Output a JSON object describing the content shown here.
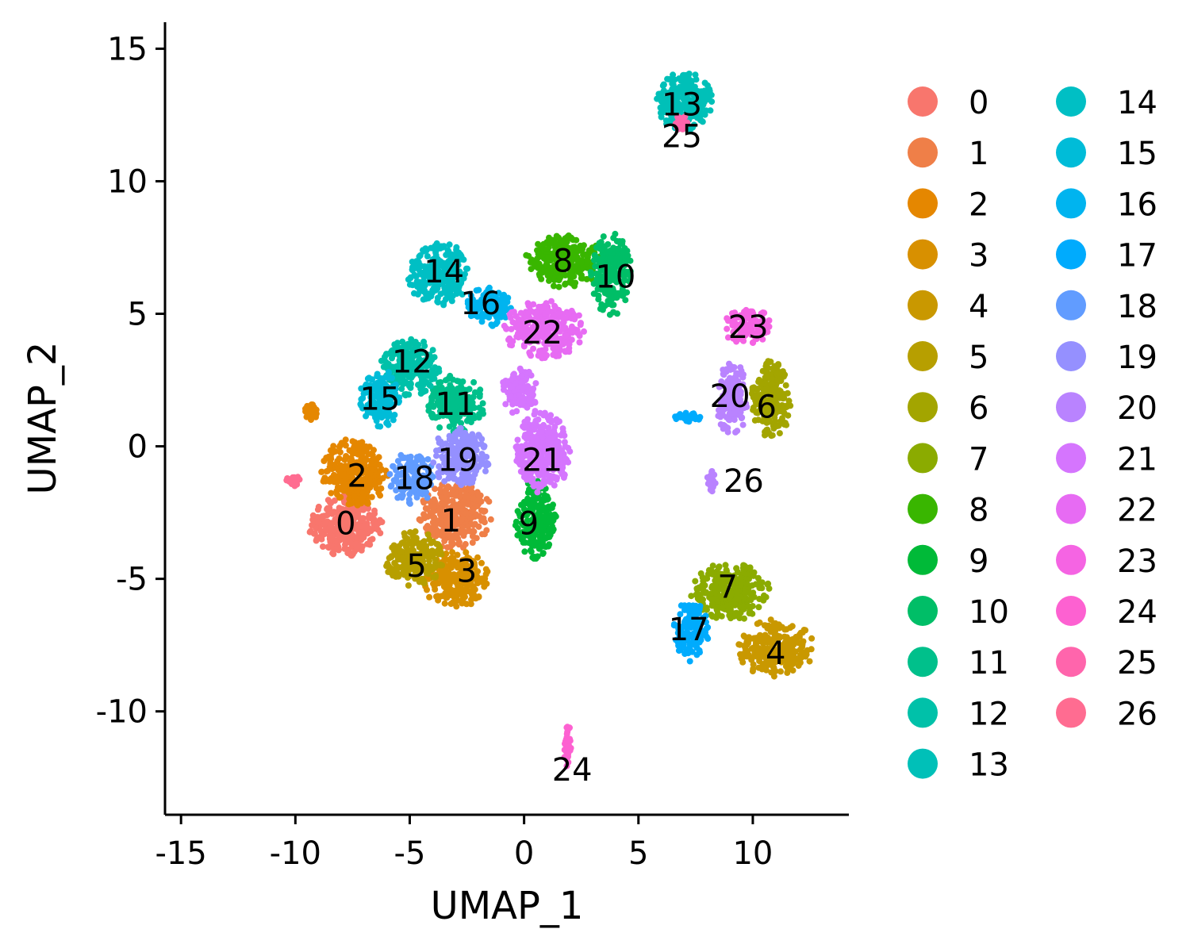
{
  "chart_data": {
    "type": "scatter",
    "xlabel": "UMAP_1",
    "ylabel": "UMAP_2",
    "xlim": [
      -15.7,
      14.2
    ],
    "ylim": [
      -13.9,
      16.0
    ],
    "xticks": [
      -15,
      -10,
      -5,
      0,
      5,
      10
    ],
    "xtick_labels": [
      "-15",
      "-10",
      "-5",
      "0",
      "5",
      "10"
    ],
    "yticks": [
      -10,
      -5,
      0,
      5,
      10,
      15
    ],
    "ytick_labels": [
      "-10",
      "-5",
      "0",
      "5",
      "10",
      "15"
    ],
    "grid": false,
    "legend_position": "right",
    "legend_columns": 2,
    "clusters": [
      {
        "name": "0",
        "color": "#F8766D",
        "label_pos": [
          -7.8,
          -2.9
        ],
        "regions": [
          [
            -7.8,
            -3.0,
            1.6,
            1.2
          ]
        ]
      },
      {
        "name": "1",
        "color": "#EF7F48",
        "label_pos": [
          -3.2,
          -2.8
        ],
        "regions": [
          [
            -3.0,
            -2.6,
            1.6,
            1.3
          ]
        ]
      },
      {
        "name": "2",
        "color": "#E58700",
        "label_pos": [
          -7.3,
          -1.1
        ],
        "regions": [
          [
            -7.4,
            -1.0,
            1.5,
            1.3
          ],
          [
            -9.3,
            1.3,
            0.3,
            0.3
          ]
        ]
      },
      {
        "name": "3",
        "color": "#D89000",
        "label_pos": [
          -2.5,
          -4.7
        ],
        "regions": [
          [
            -3.0,
            -5.0,
            1.5,
            1.1
          ]
        ]
      },
      {
        "name": "4",
        "color": "#C99800",
        "label_pos": [
          11.0,
          -7.8
        ],
        "regions": [
          [
            11.0,
            -7.6,
            1.7,
            1.1
          ]
        ]
      },
      {
        "name": "5",
        "color": "#B79F00",
        "label_pos": [
          -4.7,
          -4.5
        ],
        "regions": [
          [
            -4.8,
            -4.3,
            1.3,
            1.1
          ]
        ]
      },
      {
        "name": "6",
        "color": "#A3A500",
        "label_pos": [
          10.6,
          1.5
        ],
        "regions": [
          [
            10.8,
            1.8,
            0.9,
            1.5
          ]
        ]
      },
      {
        "name": "7",
        "color": "#8BAB00",
        "label_pos": [
          8.9,
          -5.3
        ],
        "regions": [
          [
            9.0,
            -5.5,
            1.8,
            1.1
          ]
        ]
      },
      {
        "name": "8",
        "color": "#39B600",
        "label_pos": [
          1.7,
          7.0
        ],
        "regions": [
          [
            1.8,
            7.0,
            1.8,
            1.0
          ]
        ]
      },
      {
        "name": "9",
        "color": "#00BA38",
        "label_pos": [
          0.2,
          -2.9
        ],
        "regions": [
          [
            0.5,
            -2.8,
            0.9,
            1.5
          ]
        ]
      },
      {
        "name": "10",
        "color": "#00BE67",
        "label_pos": [
          4.0,
          6.4
        ],
        "regions": [
          [
            3.8,
            6.5,
            0.9,
            1.6
          ]
        ]
      },
      {
        "name": "11",
        "color": "#00C08B",
        "label_pos": [
          -3.0,
          1.6
        ],
        "regions": [
          [
            -3.0,
            1.6,
            1.3,
            1.1
          ]
        ]
      },
      {
        "name": "12",
        "color": "#00C1A9",
        "label_pos": [
          -4.9,
          3.2
        ],
        "regions": [
          [
            -5.0,
            3.0,
            1.3,
            1.1
          ]
        ]
      },
      {
        "name": "13",
        "color": "#00C0B8",
        "label_pos": [
          6.9,
          12.9
        ],
        "regions": [
          [
            7.0,
            13.0,
            1.3,
            1.1
          ]
        ]
      },
      {
        "name": "14",
        "color": "#00BFC4",
        "label_pos": [
          -3.5,
          6.6
        ],
        "regions": [
          [
            -3.7,
            6.5,
            1.4,
            1.2
          ]
        ]
      },
      {
        "name": "15",
        "color": "#00BCD8",
        "label_pos": [
          -6.3,
          1.8
        ],
        "regions": [
          [
            -6.3,
            1.8,
            0.9,
            1.1
          ]
        ]
      },
      {
        "name": "16",
        "color": "#00B4EF",
        "label_pos": [
          -1.9,
          5.4
        ],
        "regions": [
          [
            -1.5,
            5.3,
            1.0,
            0.8
          ]
        ]
      },
      {
        "name": "17",
        "color": "#00ABFD",
        "label_pos": [
          7.2,
          -6.9
        ],
        "regions": [
          [
            7.3,
            -7.0,
            0.8,
            1.2
          ],
          [
            7.2,
            1.1,
            0.6,
            0.2
          ]
        ]
      },
      {
        "name": "18",
        "color": "#619CFF",
        "label_pos": [
          -4.8,
          -1.2
        ],
        "regions": [
          [
            -4.9,
            -1.2,
            1.0,
            1.0
          ]
        ]
      },
      {
        "name": "19",
        "color": "#9590FF",
        "label_pos": [
          -2.9,
          -0.5
        ],
        "regions": [
          [
            -2.8,
            -0.4,
            1.3,
            1.1
          ]
        ]
      },
      {
        "name": "20",
        "color": "#B983FF",
        "label_pos": [
          9.0,
          1.9
        ],
        "regions": [
          [
            9.1,
            1.8,
            0.7,
            1.4
          ],
          [
            8.2,
            -1.3,
            0.2,
            0.4
          ]
        ]
      },
      {
        "name": "21",
        "color": "#D575FE",
        "label_pos": [
          0.8,
          -0.5
        ],
        "regions": [
          [
            0.8,
            -0.2,
            1.2,
            1.6
          ],
          [
            -0.2,
            2.1,
            0.8,
            0.9
          ]
        ]
      },
      {
        "name": "22",
        "color": "#E76BF3",
        "label_pos": [
          0.8,
          4.3
        ],
        "regions": [
          [
            0.9,
            4.4,
            1.8,
            1.1
          ]
        ]
      },
      {
        "name": "23",
        "color": "#F564E3",
        "label_pos": [
          9.8,
          4.5
        ],
        "regions": [
          [
            9.8,
            4.5,
            1.1,
            0.7
          ]
        ]
      },
      {
        "name": "24",
        "color": "#FD61D1",
        "label_pos": [
          2.1,
          -12.2
        ],
        "regions": [
          [
            1.9,
            -11.3,
            0.15,
            0.9
          ]
        ]
      },
      {
        "name": "25",
        "color": "#FF65AC",
        "label_pos": [
          6.9,
          11.7
        ],
        "regions": [
          [
            6.9,
            12.2,
            0.3,
            0.3
          ]
        ]
      },
      {
        "name": "26",
        "color": "#FF6C91",
        "label_pos": [
          9.6,
          -1.3
        ],
        "regions": [
          [
            -10.1,
            -1.3,
            0.4,
            0.2
          ]
        ]
      }
    ]
  }
}
